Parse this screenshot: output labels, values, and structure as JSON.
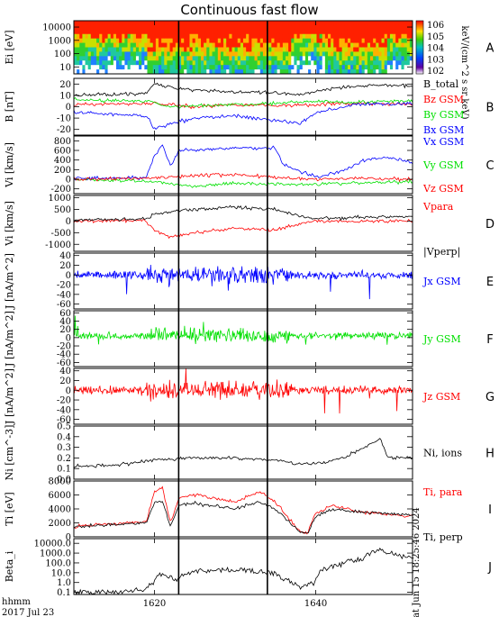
{
  "title": "Continuous fast flow",
  "date_label_1": "hhmm",
  "date_label_2": "2017 Jul 23",
  "side_note": "Sat Jun 15 18:25:46 2024",
  "x_range": [
    1610,
    1652
  ],
  "x_ticks": [
    1620,
    1640
  ],
  "x_tick_labels": [
    "1620",
    "1640"
  ],
  "marker_lines": [
    1623,
    1634
  ],
  "colors": {
    "black": "#000000",
    "red": "#ff0000",
    "green": "#00e000",
    "blue": "#0000ff"
  },
  "chart_data": [
    {
      "id": "A",
      "type": "heatmap",
      "ylabel": "Ei [eV]",
      "yscale": "log",
      "ylim": [
        3,
        30000
      ],
      "y_tick_labels": [
        "10000",
        "1000",
        "100",
        "10"
      ],
      "colorbar_label": "keV/(cm^2 s sr keV)",
      "colorbar_ticks": [
        "10^6",
        "10^5",
        "10^4",
        "10^3",
        "10^2"
      ]
    },
    {
      "id": "B",
      "type": "line",
      "ylabel": "B [nT]",
      "ylim": [
        -25,
        25
      ],
      "y_tick_labels": [
        "20",
        "10",
        "0",
        "-10",
        "-20"
      ],
      "legend": [
        "B_total",
        "Bz GSM",
        "By GSM",
        "Bx GSM"
      ],
      "series": [
        {
          "name": "B_total",
          "color": "#000000",
          "x": [
            1610,
            1619,
            1620,
            1622,
            1625,
            1630,
            1635,
            1638,
            1640,
            1644,
            1648,
            1652
          ],
          "y": [
            10,
            12,
            20,
            17,
            15,
            13,
            12,
            10,
            14,
            18,
            19,
            18
          ]
        },
        {
          "name": "Bz GSM",
          "color": "#ff0000",
          "x": [
            1610,
            1620,
            1625,
            1630,
            1635,
            1640,
            1645,
            1652
          ],
          "y": [
            2,
            3,
            0,
            2,
            1,
            2,
            3,
            2
          ]
        },
        {
          "name": "By GSM",
          "color": "#00e000",
          "x": [
            1610,
            1619,
            1622,
            1630,
            1636,
            1640,
            1645,
            1652
          ],
          "y": [
            6,
            5,
            0,
            2,
            3,
            5,
            4,
            5
          ]
        },
        {
          "name": "Bx GSM",
          "color": "#0000ff",
          "x": [
            1610,
            1619,
            1620,
            1622,
            1625,
            1630,
            1635,
            1638,
            1640,
            1645,
            1652
          ],
          "y": [
            -5,
            -8,
            -20,
            -15,
            -10,
            -8,
            -12,
            -15,
            -5,
            2,
            3
          ]
        }
      ]
    },
    {
      "id": "C",
      "type": "line",
      "ylabel": "Vi [km/s]",
      "ylim": [
        -300,
        900
      ],
      "y_tick_labels": [
        "800",
        "600",
        "400",
        "200",
        "0",
        "-200"
      ],
      "legend": [
        "Vx GSM",
        "Vy GSM",
        "Vz GSM"
      ],
      "series": [
        {
          "name": "Vx GSM",
          "color": "#0000ff",
          "x": [
            1610,
            1619,
            1620,
            1621,
            1622,
            1623,
            1625,
            1630,
            1635,
            1636,
            1640,
            1643,
            1646,
            1649,
            1652
          ],
          "y": [
            20,
            30,
            500,
            700,
            250,
            600,
            600,
            650,
            650,
            300,
            50,
            150,
            400,
            450,
            350
          ]
        },
        {
          "name": "Vy GSM",
          "color": "#00e000",
          "x": [
            1610,
            1620,
            1625,
            1630,
            1635,
            1640,
            1645,
            1652
          ],
          "y": [
            0,
            -50,
            -150,
            -80,
            -100,
            -100,
            -80,
            -50
          ]
        },
        {
          "name": "Vz GSM",
          "color": "#ff0000",
          "x": [
            1610,
            1620,
            1625,
            1630,
            1635,
            1640,
            1645,
            1652
          ],
          "y": [
            0,
            30,
            80,
            100,
            40,
            0,
            20,
            0
          ]
        }
      ]
    },
    {
      "id": "D",
      "type": "line",
      "ylabel": "Vi [km/s]",
      "ylim": [
        -1300,
        1100
      ],
      "y_tick_labels": [
        "1000",
        "500",
        "0",
        "-500",
        "-1000"
      ],
      "legend": [
        "Vpara",
        "|Vperp|"
      ],
      "series": [
        {
          "name": "Vpara",
          "color": "#ff0000",
          "x": [
            1610,
            1619,
            1620,
            1622,
            1625,
            1630,
            1635,
            1638,
            1640,
            1645,
            1652
          ],
          "y": [
            0,
            0,
            -400,
            -700,
            -500,
            -300,
            -400,
            -100,
            0,
            0,
            0
          ]
        },
        {
          "name": "|Vperp|",
          "color": "#000000",
          "x": [
            1610,
            1619,
            1620,
            1622,
            1625,
            1630,
            1635,
            1638,
            1640,
            1645,
            1652
          ],
          "y": [
            50,
            100,
            300,
            400,
            500,
            600,
            500,
            200,
            100,
            150,
            200
          ]
        }
      ]
    },
    {
      "id": "E",
      "type": "line",
      "ylabel": "J [nA/m^2]",
      "ylim": [
        -70,
        45
      ],
      "y_tick_labels": [
        "40",
        "20",
        "0",
        "-20",
        "-40",
        "-60"
      ],
      "legend": [
        "Jx GSM"
      ],
      "series": [
        {
          "name": "Jx GSM",
          "color": "#0000ff",
          "x": [
            1610,
            1652
          ],
          "y": [
            0,
            0
          ]
        }
      ]
    },
    {
      "id": "F",
      "type": "line",
      "ylabel": "J [nA/m^2]",
      "ylim": [
        -70,
        65
      ],
      "y_tick_labels": [
        "60",
        "40",
        "20",
        "0",
        "-20",
        "-40",
        "-60"
      ],
      "legend": [
        "Jy GSM"
      ],
      "series": [
        {
          "name": "Jy GSM",
          "color": "#00e000",
          "x": [
            1610,
            1652
          ],
          "y": [
            5,
            5
          ]
        }
      ]
    },
    {
      "id": "G",
      "type": "line",
      "ylabel": "J [nA/m^2]",
      "ylim": [
        -70,
        45
      ],
      "y_tick_labels": [
        "40",
        "20",
        "0",
        "-20",
        "-40",
        "-60"
      ],
      "legend": [
        "Jz GSM"
      ],
      "series": [
        {
          "name": "Jz GSM",
          "color": "#ff0000",
          "x": [
            1610,
            1652
          ],
          "y": [
            0,
            0
          ]
        }
      ]
    },
    {
      "id": "H",
      "type": "line",
      "ylabel": "Ni [cm^-3]",
      "ylim": [
        0,
        0.5
      ],
      "y_tick_labels": [
        "0.5",
        "0.4",
        "0.3",
        "0.2",
        "0.1",
        "0.0"
      ],
      "legend": [
        "Ni, ions"
      ],
      "series": [
        {
          "name": "Ni, ions",
          "color": "#000000",
          "x": [
            1610,
            1615,
            1620,
            1625,
            1630,
            1635,
            1638,
            1641,
            1644,
            1646,
            1648,
            1649,
            1652
          ],
          "y": [
            0.12,
            0.13,
            0.18,
            0.2,
            0.2,
            0.18,
            0.14,
            0.15,
            0.22,
            0.3,
            0.38,
            0.2,
            0.2
          ]
        }
      ]
    },
    {
      "id": "I",
      "type": "line",
      "ylabel": "Ti [eV]",
      "ylim": [
        0,
        8000
      ],
      "y_tick_labels": [
        "8000",
        "6000",
        "4000",
        "2000",
        "0"
      ],
      "legend": [
        "Ti, para",
        "Ti, perp"
      ],
      "series": [
        {
          "name": "Ti, para",
          "color": "#ff0000",
          "x": [
            1610,
            1619,
            1620,
            1621,
            1622,
            1623,
            1625,
            1630,
            1633,
            1635,
            1638,
            1639,
            1640,
            1642,
            1646,
            1652
          ],
          "y": [
            1500,
            2200,
            6500,
            7000,
            2000,
            5500,
            6000,
            5000,
            6500,
            5000,
            800,
            600,
            3500,
            4500,
            3500,
            3000
          ]
        },
        {
          "name": "Ti, perp",
          "color": "#000000",
          "x": [
            1610,
            1619,
            1620,
            1621,
            1622,
            1623,
            1625,
            1630,
            1633,
            1635,
            1638,
            1639,
            1640,
            1642,
            1646,
            1652
          ],
          "y": [
            1400,
            2000,
            5000,
            5000,
            1500,
            4500,
            4800,
            4000,
            5000,
            4000,
            700,
            500,
            3000,
            4000,
            3500,
            3200
          ]
        }
      ]
    },
    {
      "id": "J",
      "type": "line",
      "ylabel": "Beta_i",
      "yscale": "log",
      "ylim": [
        0.06,
        30000
      ],
      "y_tick_labels": [
        "10000.0",
        "1000.0",
        "100.0",
        "10.0",
        "1.0",
        "0.1"
      ],
      "legend": [],
      "series": [
        {
          "name": "",
          "color": "#000000",
          "x": [
            1610,
            1615,
            1619,
            1620,
            1621,
            1622,
            1623,
            1625,
            1630,
            1634,
            1636,
            1638,
            1640,
            1643,
            1646,
            1648,
            1650,
            1652
          ],
          "y": [
            0.1,
            0.1,
            0.2,
            1,
            8,
            3,
            2,
            15,
            20,
            12,
            2,
            0.2,
            1,
            60,
            300,
            2000,
            500,
            300
          ]
        }
      ]
    }
  ],
  "panel_letters": [
    "A",
    "B",
    "C",
    "D",
    "E",
    "F",
    "G",
    "H",
    "I",
    "J"
  ]
}
